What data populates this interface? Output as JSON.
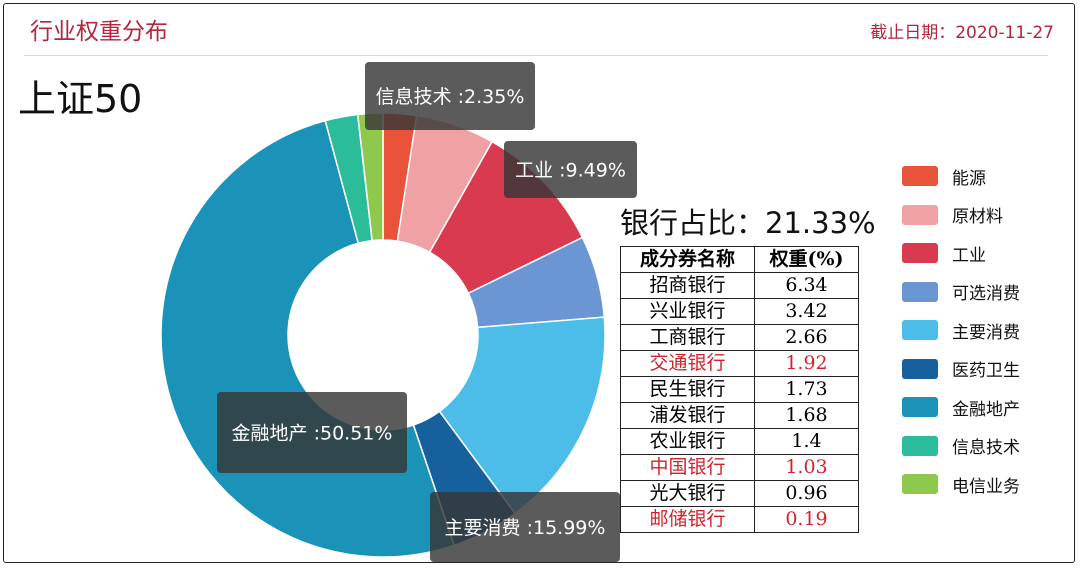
{
  "header": {
    "title": "行业权重分布",
    "date": "截止日期：2020-11-27"
  },
  "index_name": "上证50",
  "bank_ratio": "银行占比：21.33%",
  "chart_data": {
    "type": "pie",
    "donut": true,
    "legend_position": "right",
    "slices": [
      {
        "name": "能源",
        "value": 2.4,
        "color": "#e8533a"
      },
      {
        "name": "原材料",
        "value": 5.7,
        "color": "#f0a1a4"
      },
      {
        "name": "工业",
        "value": 9.49,
        "color": "#d93a4f"
      },
      {
        "name": "可选消费",
        "value": 5.9,
        "color": "#6a97d4"
      },
      {
        "name": "主要消费",
        "value": 15.99,
        "color": "#4bbde8"
      },
      {
        "name": "医药卫生",
        "value": 4.9,
        "color": "#17609e"
      },
      {
        "name": "金融地产",
        "value": 50.51,
        "color": "#1b93b8"
      },
      {
        "name": "信息技术",
        "value": 2.35,
        "color": "#2bbd9a"
      },
      {
        "name": "电信业务",
        "value": 1.8,
        "color": "#8ec94e"
      }
    ],
    "labels": [
      {
        "text": "信息技术 :2.35%"
      },
      {
        "text": "工业 :9.49%"
      },
      {
        "text": "金融地产 :50.51%"
      },
      {
        "text": "主要消费 :15.99%"
      }
    ]
  },
  "table": {
    "headers": [
      "成分券名称",
      "权重(%)"
    ],
    "rows": [
      {
        "name": "招商银行",
        "weight": "6.34",
        "highlight": false
      },
      {
        "name": "兴业银行",
        "weight": "3.42",
        "highlight": false
      },
      {
        "name": "工商银行",
        "weight": "2.66",
        "highlight": false
      },
      {
        "name": "交通银行",
        "weight": "1.92",
        "highlight": true
      },
      {
        "name": "民生银行",
        "weight": "1.73",
        "highlight": false
      },
      {
        "name": "浦发银行",
        "weight": "1.68",
        "highlight": false
      },
      {
        "name": "农业银行",
        "weight": "1.4",
        "highlight": false
      },
      {
        "name": "中国银行",
        "weight": "1.03",
        "highlight": true
      },
      {
        "name": "光大银行",
        "weight": "0.96",
        "highlight": false
      },
      {
        "name": "邮储银行",
        "weight": "0.19",
        "highlight": true
      }
    ]
  }
}
